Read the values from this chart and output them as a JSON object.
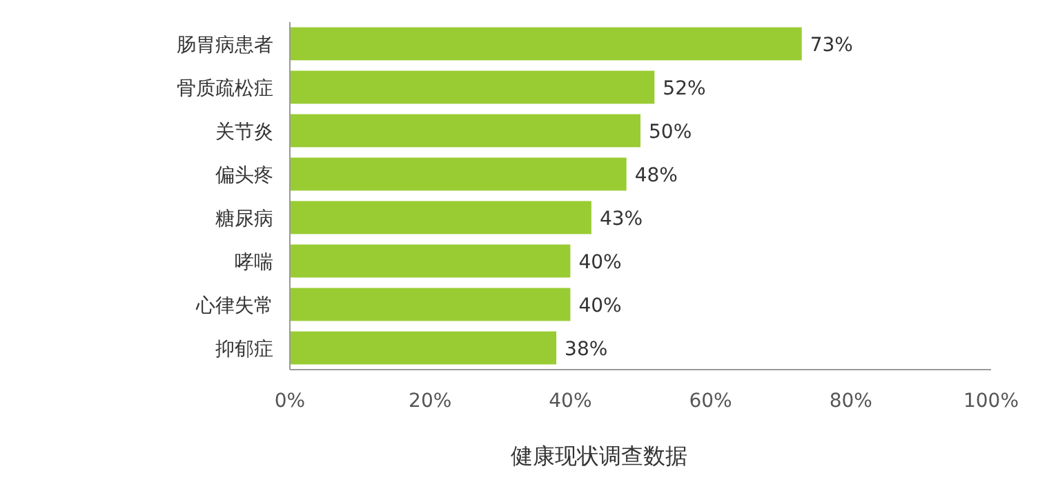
{
  "chart_data": {
    "type": "bar",
    "orientation": "horizontal",
    "title": "健康现状调查数据",
    "categories": [
      "肠胃病患者",
      "骨质疏松症",
      "关节炎",
      "偏头疼",
      "糖尿病",
      "哮喘",
      "心律失常",
      "抑郁症"
    ],
    "values": [
      73,
      52,
      50,
      48,
      43,
      40,
      40,
      38
    ],
    "value_labels": [
      "73%",
      "52%",
      "50%",
      "48%",
      "43%",
      "40%",
      "40%",
      "38%"
    ],
    "color": "#99cc33",
    "xlim": [
      0,
      100
    ],
    "xticks": [
      {
        "value": 0,
        "label": "0%"
      },
      {
        "value": 20,
        "label": "20%"
      },
      {
        "value": 40,
        "label": "40%"
      },
      {
        "value": 60,
        "label": "60%"
      },
      {
        "value": 80,
        "label": "80%"
      },
      {
        "value": 100,
        "label": "100%"
      }
    ],
    "grid": false
  }
}
